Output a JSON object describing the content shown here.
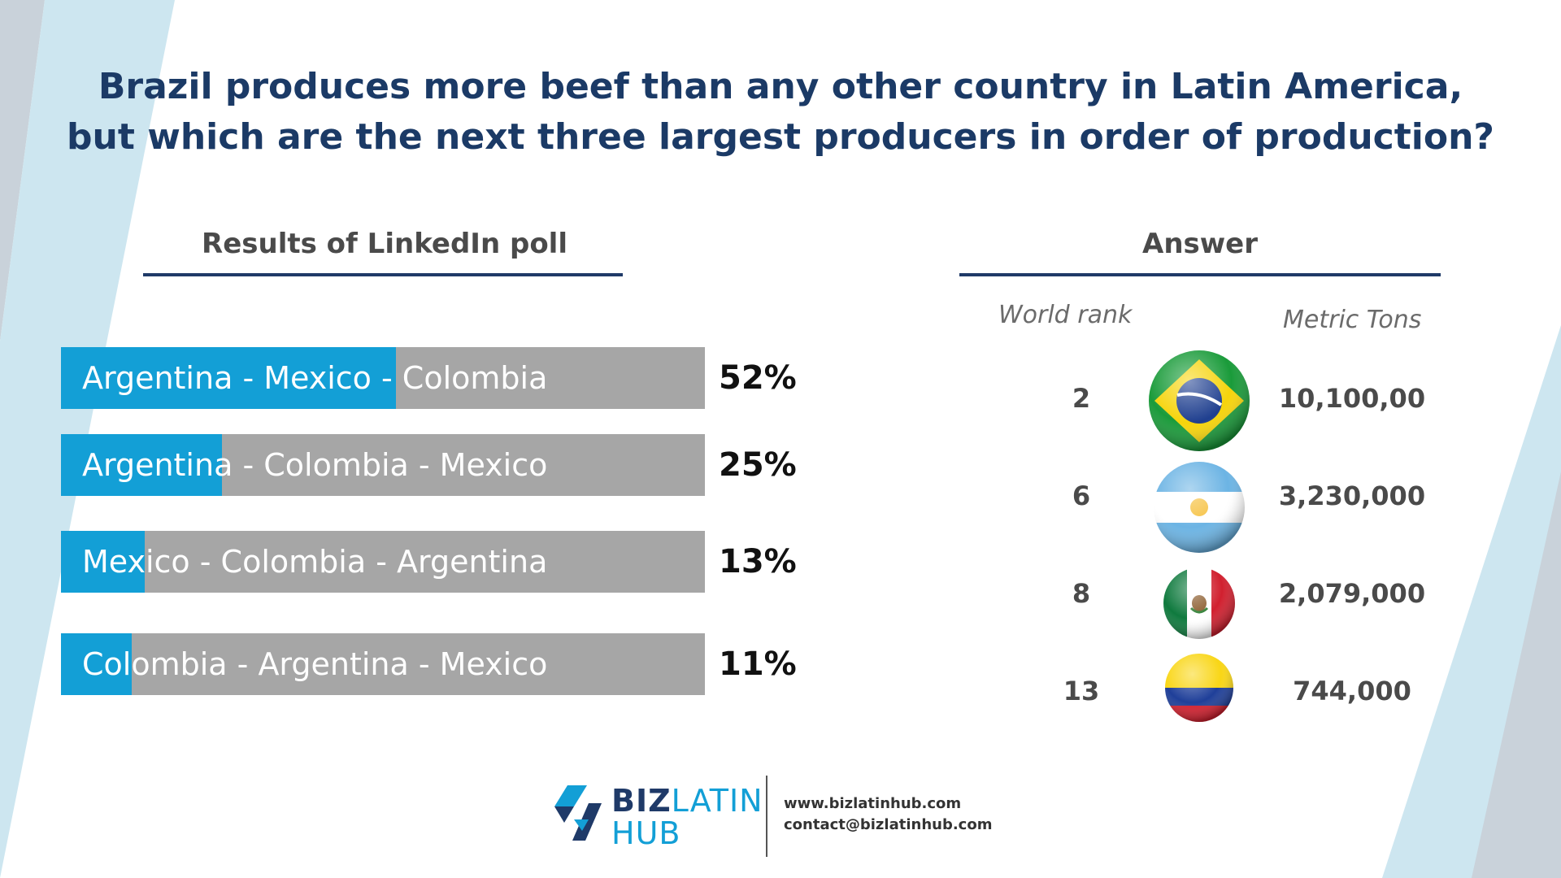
{
  "headline": {
    "line1": "Brazil produces more beef than any other country in Latin America,",
    "line2": "but which are the next three largest producers in order of production?"
  },
  "colors": {
    "navy": "#1b3a66",
    "bar_fill": "#139fd6",
    "bar_track": "#a6a6a6",
    "decor_light": "#cde6f0",
    "decor_gray": "#c9d2da"
  },
  "chart_data": [
    {
      "type": "bar",
      "title": "Results of LinkedIn poll",
      "orientation": "horizontal",
      "categories": [
        "Argentina - Mexico - Colombia",
        "Argentina - Colombia - Mexico",
        "Mexico - Colombia - Argentina",
        "Colombia - Argentina - Mexico"
      ],
      "values": [
        52,
        25,
        13,
        11
      ],
      "value_labels": [
        "52%",
        "25%",
        "13%",
        "11%"
      ],
      "xlim": [
        0,
        100
      ],
      "unit": "%"
    },
    {
      "type": "table",
      "title": "Answer",
      "columns": [
        "World rank",
        "Metric Tons"
      ],
      "rows": [
        {
          "country": "Brazil",
          "rank": "2",
          "tons": "10,100,00"
        },
        {
          "country": "Argentina",
          "rank": "6",
          "tons": "3,230,000"
        },
        {
          "country": "Mexico",
          "rank": "8",
          "tons": "2,079,000"
        },
        {
          "country": "Colombia",
          "rank": "13",
          "tons": "744,000"
        }
      ]
    }
  ],
  "footer": {
    "brand_word1": "BIZ",
    "brand_word2": "LATIN",
    "brand_word3": "HUB",
    "website": "www.bizlatinhub.com",
    "email": "contact@bizlatinhub.com"
  }
}
